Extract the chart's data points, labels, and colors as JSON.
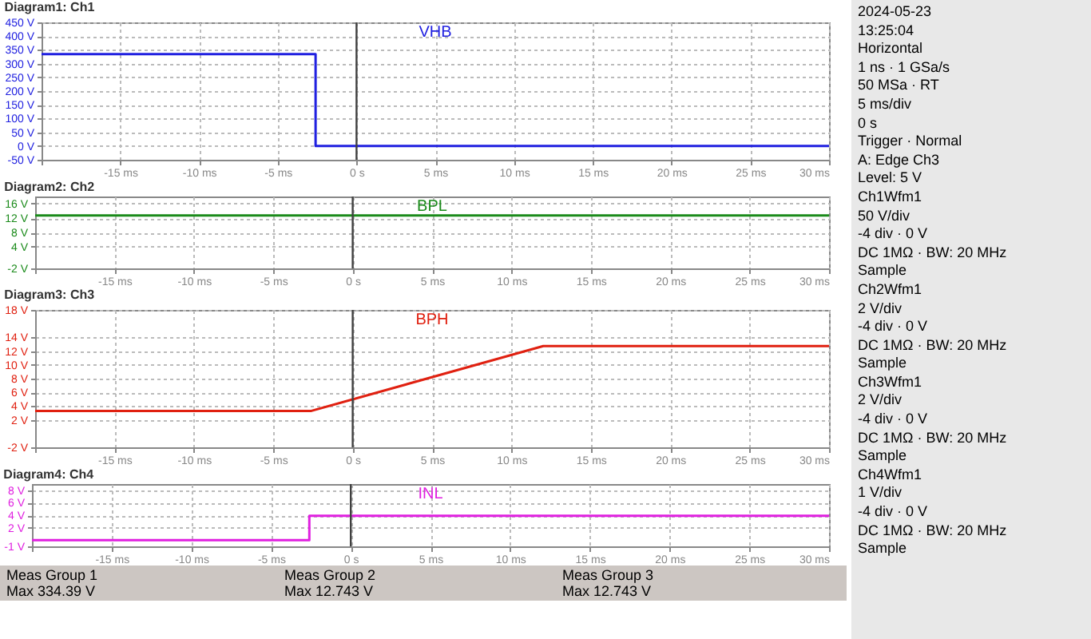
{
  "chart_data": [
    {
      "type": "line",
      "title": "Diagram1: Ch1",
      "xlim": [
        -20,
        30
      ],
      "xticks": [
        {
          "value": -20,
          "label": null
        },
        {
          "value": -15,
          "label": "-15 ms"
        },
        {
          "value": -10,
          "label": "-10 ms"
        },
        {
          "value": -5,
          "label": "-5 ms"
        },
        {
          "value": 0,
          "label": "0 s"
        },
        {
          "value": 5,
          "label": "5 ms"
        },
        {
          "value": 10,
          "label": "10 ms"
        },
        {
          "value": 15,
          "label": "15 ms"
        },
        {
          "value": 20,
          "label": "20 ms"
        },
        {
          "value": 25,
          "label": "25 ms"
        },
        {
          "value": 30,
          "label": "30 ms"
        }
      ],
      "ylim": [
        -50,
        450
      ],
      "yticks": [
        {
          "value": -50,
          "label": "-50 V"
        },
        {
          "value": 0,
          "label": "0 V"
        },
        {
          "value": 50,
          "label": "50 V"
        },
        {
          "value": 100,
          "label": "100 V"
        },
        {
          "value": 150,
          "label": "150 V"
        },
        {
          "value": 200,
          "label": "200 V"
        },
        {
          "value": 250,
          "label": "250 V"
        },
        {
          "value": 300,
          "label": "300 V"
        },
        {
          "value": 350,
          "label": "350 V"
        },
        {
          "value": 400,
          "label": "400 V"
        },
        {
          "value": 450,
          "label": "450 V"
        }
      ],
      "grid": true,
      "marker": "none",
      "line_style": "solid",
      "ref_lines": [
        {
          "axis": "x",
          "value": 0,
          "color": "#404040"
        }
      ],
      "series": [
        {
          "name": "VHB",
          "color": "#2020e0",
          "x": [
            -20,
            -2.6,
            -2.6,
            30
          ],
          "values": [
            334.39,
            334.39,
            0,
            0
          ]
        }
      ]
    },
    {
      "type": "line",
      "title": "Diagram2: Ch2",
      "xlim": [
        -20,
        30
      ],
      "xticks": [
        {
          "value": -20,
          "label": null
        },
        {
          "value": -15,
          "label": "-15 ms"
        },
        {
          "value": -10,
          "label": "-10 ms"
        },
        {
          "value": -5,
          "label": "-5 ms"
        },
        {
          "value": 0,
          "label": "0 s"
        },
        {
          "value": 5,
          "label": "5 ms"
        },
        {
          "value": 10,
          "label": "10 ms"
        },
        {
          "value": 15,
          "label": "15 ms"
        },
        {
          "value": 20,
          "label": "20 ms"
        },
        {
          "value": 25,
          "label": "25 ms"
        },
        {
          "value": 30,
          "label": "30 ms"
        }
      ],
      "ylim": [
        -2,
        18
      ],
      "yticks": [
        {
          "value": -2,
          "label": "-2 V"
        },
        {
          "value": 4,
          "label": "4 V"
        },
        {
          "value": 8,
          "label": "8 V"
        },
        {
          "value": 12,
          "label": "12 V"
        },
        {
          "value": 16,
          "label": "16 V"
        }
      ],
      "grid": true,
      "marker": "none",
      "line_style": "solid",
      "ref_lines": [
        {
          "axis": "x",
          "value": 0,
          "color": "#404040"
        }
      ],
      "series": [
        {
          "name": "BPL",
          "color": "#1a8a1a",
          "x": [
            -20,
            30
          ],
          "values": [
            12.743,
            12.743
          ]
        }
      ]
    },
    {
      "type": "line",
      "title": "Diagram3: Ch3",
      "xlim": [
        -20,
        30
      ],
      "xticks": [
        {
          "value": -20,
          "label": null
        },
        {
          "value": -15,
          "label": "-15 ms"
        },
        {
          "value": -10,
          "label": "-10 ms"
        },
        {
          "value": -5,
          "label": "-5 ms"
        },
        {
          "value": 0,
          "label": "0 s"
        },
        {
          "value": 5,
          "label": "5 ms"
        },
        {
          "value": 10,
          "label": "10 ms"
        },
        {
          "value": 15,
          "label": "15 ms"
        },
        {
          "value": 20,
          "label": "20 ms"
        },
        {
          "value": 25,
          "label": "25 ms"
        },
        {
          "value": 30,
          "label": "30 ms"
        }
      ],
      "ylim": [
        -2,
        18
      ],
      "yticks": [
        {
          "value": -2,
          "label": "-2 V"
        },
        {
          "value": 2,
          "label": "2 V"
        },
        {
          "value": 4,
          "label": "4 V"
        },
        {
          "value": 6,
          "label": "6 V"
        },
        {
          "value": 8,
          "label": "8 V"
        },
        {
          "value": 10,
          "label": "10 V"
        },
        {
          "value": 12,
          "label": "12 V"
        },
        {
          "value": 14,
          "label": "14 V"
        },
        {
          "value": 18,
          "label": "18 V"
        }
      ],
      "grid": true,
      "marker": "none",
      "line_style": "solid",
      "ref_lines": [
        {
          "axis": "x",
          "value": 0,
          "color": "#404040"
        }
      ],
      "series": [
        {
          "name": "BPH",
          "color": "#e02010",
          "x": [
            -20,
            -2.6,
            12,
            30
          ],
          "values": [
            3.3,
            3.3,
            12.743,
            12.743
          ]
        }
      ]
    },
    {
      "type": "line",
      "title": "Diagram4: Ch4",
      "xlim": [
        -20,
        30
      ],
      "xticks": [
        {
          "value": -20,
          "label": null
        },
        {
          "value": -15,
          "label": "-15 ms"
        },
        {
          "value": -10,
          "label": "-10 ms"
        },
        {
          "value": -5,
          "label": "-5 ms"
        },
        {
          "value": 0,
          "label": "0 s"
        },
        {
          "value": 5,
          "label": "5 ms"
        },
        {
          "value": 10,
          "label": "10 ms"
        },
        {
          "value": 15,
          "label": "15 ms"
        },
        {
          "value": 20,
          "label": "20 ms"
        },
        {
          "value": 25,
          "label": "25 ms"
        },
        {
          "value": 30,
          "label": "30 ms"
        }
      ],
      "ylim": [
        -1,
        9
      ],
      "yticks": [
        {
          "value": -1,
          "label": "-1 V"
        },
        {
          "value": 2,
          "label": "2 V"
        },
        {
          "value": 4,
          "label": "4 V"
        },
        {
          "value": 6,
          "label": "6 V"
        },
        {
          "value": 8,
          "label": "8 V"
        }
      ],
      "grid": true,
      "marker": "none",
      "line_style": "solid",
      "ref_lines": [
        {
          "axis": "x",
          "value": 0,
          "color": "#404040"
        }
      ],
      "series": [
        {
          "name": "INL",
          "color": "#e020e0",
          "x": [
            -20,
            -2.6,
            -2.6,
            30
          ],
          "values": [
            0,
            0,
            3.9,
            3.9
          ]
        }
      ]
    },
    {
      "type": "other",
      "annotations": [
        "2024-05-23",
        "13:25:04",
        "Horizontal",
        "1 ns · 1 GSa/s",
        "50 MSa · RT",
        "5 ms/div",
        "0 s",
        "Trigger · Normal",
        "A: Edge Ch3",
        "Level: 5 V",
        "Ch1Wfm1",
        "50 V/div",
        "-4 div · 0 V",
        "DC 1MΩ · BW: 20 MHz",
        "Sample",
        "Ch2Wfm1",
        "2 V/div",
        "-4 div · 0 V",
        "DC 1MΩ · BW: 20 MHz",
        "Sample",
        "Ch3Wfm1",
        "2 V/div",
        "-4 div · 0 V",
        "DC 1MΩ · BW: 20 MHz",
        "Sample",
        "Ch4Wfm1",
        "1 V/div",
        "-4 div · 0 V",
        "DC 1MΩ · BW: 20 MHz",
        "Sample"
      ]
    },
    {
      "type": "other",
      "annotations": [
        "Meas Group 1",
        "Meas Group 2",
        "Meas Group 3",
        "Max 334.39 V",
        "Max 12.743 V",
        "Max 12.743 V"
      ]
    }
  ]
}
